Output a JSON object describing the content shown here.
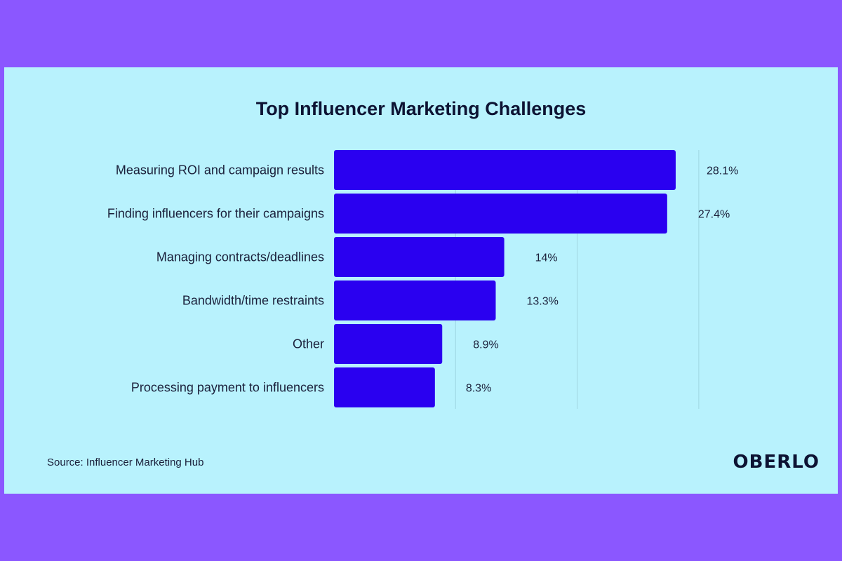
{
  "colors": {
    "background": "#8b57ff",
    "panel": "#b8f2fd",
    "bar": "#2a00f0",
    "gridline": "#9fd6e2",
    "text": "#1a1f3a"
  },
  "chart_data": {
    "type": "bar",
    "orientation": "horizontal",
    "title": "Top Influencer Marketing Challenges",
    "xlabel": "",
    "ylabel": "",
    "xlim": [
      0,
      30
    ],
    "grid": true,
    "gridlines": [
      10,
      20,
      30
    ],
    "categories": [
      "Measuring ROI and campaign results",
      "Finding influencers for their campaigns",
      "Managing contracts/deadlines",
      "Bandwidth/time restraints",
      "Other",
      "Processing payment to influencers"
    ],
    "values": [
      28.1,
      27.4,
      14,
      13.3,
      8.9,
      8.3
    ],
    "value_labels": [
      "28.1%",
      "27.4%",
      "14%",
      "13.3%",
      "8.9%",
      "8.3%"
    ]
  },
  "footer": {
    "source": "Source: Influencer Marketing Hub",
    "logo": "OBERLO"
  }
}
